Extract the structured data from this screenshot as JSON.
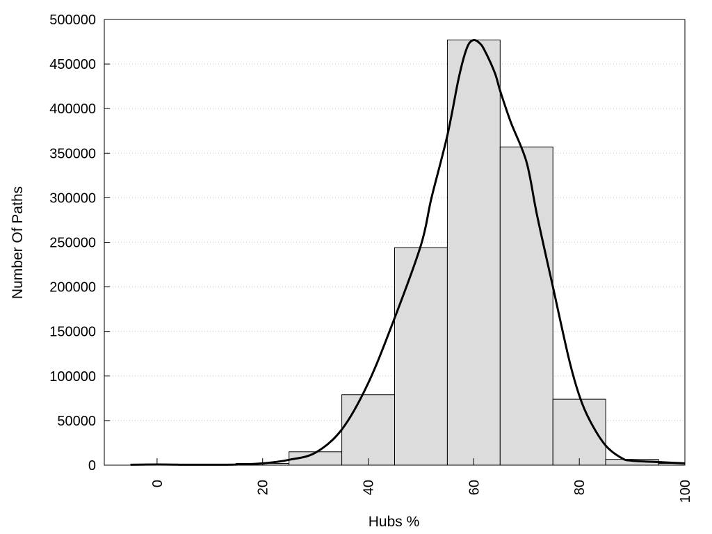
{
  "chart_data": {
    "type": "bar",
    "title": "",
    "xlabel": "Hubs %",
    "ylabel": "Number Of Paths",
    "xlim": [
      -10,
      100
    ],
    "ylim": [
      0,
      500000
    ],
    "xticks": [
      0,
      20,
      40,
      60,
      80,
      100
    ],
    "yticks": [
      0,
      50000,
      100000,
      150000,
      200000,
      250000,
      300000,
      350000,
      400000,
      450000,
      500000
    ],
    "grid": "horizontal dotted",
    "bin_width": 10,
    "bars": [
      {
        "x": 0,
        "value": 1000
      },
      {
        "x": 10,
        "value": 500
      },
      {
        "x": 20,
        "value": 2000
      },
      {
        "x": 30,
        "value": 15000
      },
      {
        "x": 40,
        "value": 79000
      },
      {
        "x": 50,
        "value": 244000
      },
      {
        "x": 60,
        "value": 477000
      },
      {
        "x": 70,
        "value": 357000
      },
      {
        "x": 80,
        "value": 74000
      },
      {
        "x": 90,
        "value": 6500
      },
      {
        "x": 100,
        "value": 2000
      }
    ],
    "curve": {
      "x": [
        -5,
        0,
        5,
        10,
        15,
        20,
        25,
        30,
        35,
        40,
        45,
        50,
        52,
        55,
        57,
        58,
        59,
        60,
        61,
        62,
        64,
        65,
        67,
        70,
        72,
        75,
        78,
        80,
        82,
        85,
        88,
        90,
        95,
        100
      ],
      "y": [
        500,
        800,
        500,
        500,
        700,
        2000,
        6000,
        14000,
        40000,
        92000,
        165000,
        247000,
        300000,
        370000,
        430000,
        455000,
        472000,
        477000,
        474000,
        466000,
        440000,
        420000,
        385000,
        340000,
        280000,
        200000,
        120000,
        78000,
        50000,
        22000,
        8000,
        5000,
        3500,
        2000
      ]
    },
    "colors": {
      "bar_fill": "#dcdcdc",
      "bar_stroke": "#000000",
      "curve": "#000000",
      "grid": "#c0c0c0"
    }
  }
}
